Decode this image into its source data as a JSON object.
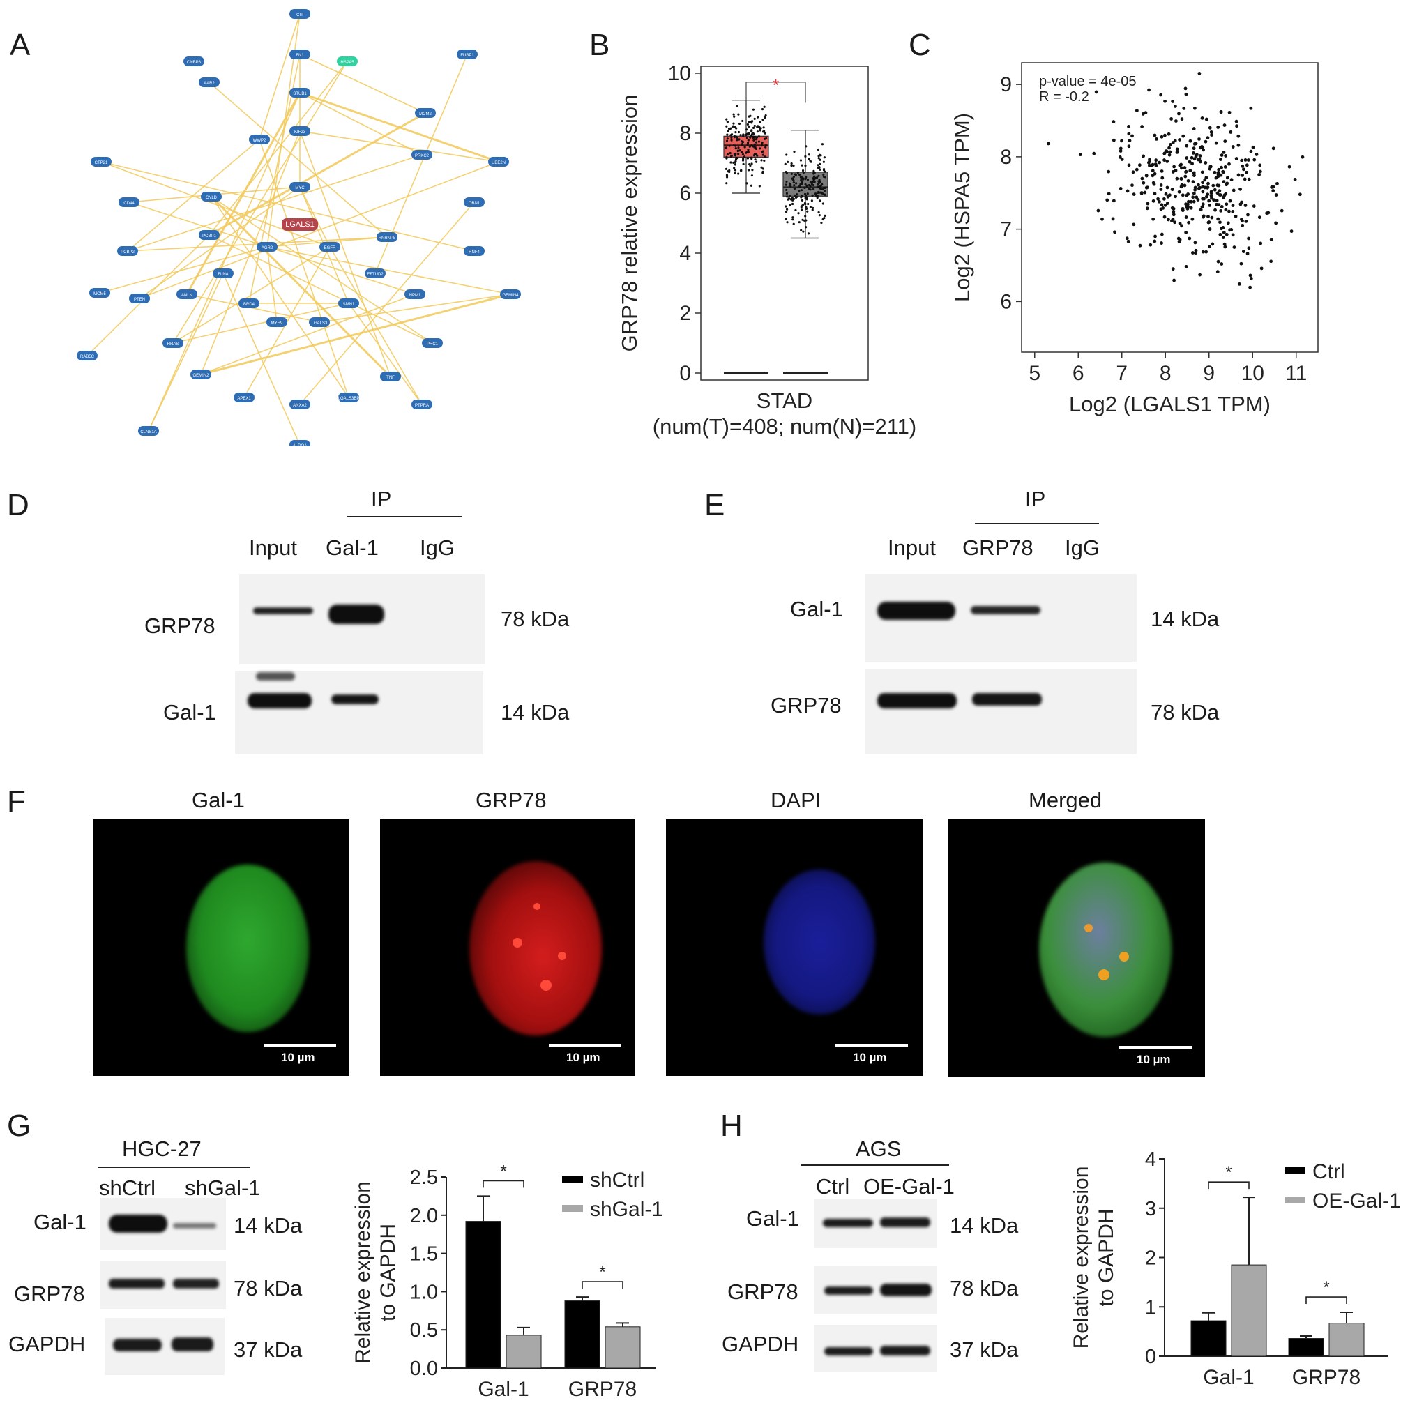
{
  "panel_letters": {
    "a": "A",
    "b": "B",
    "c": "C",
    "d": "D",
    "e": "E",
    "f": "F",
    "g": "G",
    "h": "H"
  },
  "network": {
    "center": "LGALS1",
    "highlight": "HSPA5",
    "nodes": [
      "CIT",
      "CNBP8",
      "FN1",
      "HSPA5",
      "FUBP1",
      "AAR2",
      "STUB1",
      "MCM2",
      "KIF23",
      "WWP2",
      "PRKC2",
      "UBE2N",
      "CTP21",
      "MYC",
      "OBN1",
      "CD44",
      "CYLD",
      "LGALS1",
      "PCBP2",
      "PCBP1",
      "AGR2",
      "EGFR",
      "HNRNP5",
      "RNF4",
      "FLNA",
      "EFTUD2",
      "MCM5",
      "PTEN",
      "ANLN",
      "BRD4",
      "SMN1",
      "NPM1",
      "GEMIN4",
      "MYH9",
      "LGALS3",
      "HRAS",
      "PRC1",
      "RAB5C",
      "GEMIN2",
      "APEX1",
      "ANXA2",
      "LGALS3BP",
      "TNF",
      "PTPRA",
      "CLNS1A",
      "ALDOA"
    ]
  },
  "chart_data": [
    {
      "type": "box",
      "title": "",
      "ylabel": "GRP78 relative expression",
      "xlabel": "STAD",
      "xlabel_sub": "(num(T)=408; num(N)=211)",
      "ylim": [
        0,
        10
      ],
      "yticks": [
        0,
        2,
        4,
        6,
        8,
        10
      ],
      "significance": "*",
      "series": [
        {
          "name": "T",
          "color": "#e8605b",
          "whisker_low": 6.0,
          "q1": 7.2,
          "median": 7.6,
          "q3": 7.9,
          "whisker_high": 9.1
        },
        {
          "name": "N",
          "color": "#7a7a7a",
          "whisker_low": 4.5,
          "q1": 5.9,
          "median": 6.2,
          "q3": 6.7,
          "whisker_high": 8.1
        }
      ]
    },
    {
      "type": "scatter",
      "xlabel": "Log2 (LGALS1 TPM)",
      "ylabel": "Log2 (HSPA5 TPM)",
      "xlim": [
        4.7,
        11.5
      ],
      "ylim": [
        5.3,
        9.3
      ],
      "xticks": [
        5,
        6,
        7,
        8,
        9,
        10,
        11
      ],
      "yticks": [
        6,
        7,
        8,
        9
      ],
      "annotations": [
        "p-value = 4e-05",
        "R = -0.2"
      ],
      "n_points": 408,
      "center": [
        8.7,
        7.6
      ],
      "spread": [
        0.95,
        0.55
      ],
      "r": -0.2
    },
    {
      "type": "bar",
      "ylabel": "Relative expression to GAPDH",
      "categories": [
        "Gal-1",
        "GRP78"
      ],
      "ylim": [
        0,
        2.5
      ],
      "yticks": [
        "0.0",
        "0.5",
        "1.0",
        "1.5",
        "2.0",
        "2.5"
      ],
      "series": [
        {
          "name": "shCtrl",
          "color": "#000000",
          "values": [
            1.92,
            0.88
          ],
          "errors": [
            0.33,
            0.05
          ]
        },
        {
          "name": "shGal-1",
          "color": "#a8a8a8",
          "values": [
            0.43,
            0.54
          ],
          "errors": [
            0.1,
            0.05
          ]
        }
      ],
      "significance": [
        "*",
        "*"
      ]
    },
    {
      "type": "bar",
      "ylabel": "Relative expression to GAPDH",
      "categories": [
        "Gal-1",
        "GRP78"
      ],
      "ylim": [
        0,
        4
      ],
      "yticks": [
        "0",
        "1",
        "2",
        "3",
        "4"
      ],
      "series": [
        {
          "name": "Ctrl",
          "color": "#000000",
          "values": [
            0.72,
            0.36
          ],
          "errors": [
            0.16,
            0.05
          ]
        },
        {
          "name": "OE-Gal-1",
          "color": "#a8a8a8",
          "values": [
            1.85,
            0.67
          ],
          "errors": [
            1.37,
            0.22
          ]
        }
      ],
      "significance": [
        "*",
        "*"
      ]
    }
  ],
  "panel_d": {
    "ip": "IP",
    "lanes": [
      "Input",
      "Gal-1",
      "IgG"
    ],
    "rows": [
      "GRP78",
      "Gal-1"
    ],
    "sizes": [
      "78 kDa",
      "14 kDa"
    ]
  },
  "panel_e": {
    "ip": "IP",
    "lanes": [
      "Input",
      "GRP78",
      "IgG"
    ],
    "rows": [
      "Gal-1",
      "GRP78"
    ],
    "sizes": [
      "14 kDa",
      "78 kDa"
    ]
  },
  "panel_f": {
    "titles": [
      "Gal-1",
      "GRP78",
      "DAPI",
      "Merged"
    ],
    "scale": "10 µm"
  },
  "panel_g": {
    "cell_line": "HGC-27",
    "lanes": [
      "shCtrl",
      "shGal-1"
    ],
    "rows": [
      "Gal-1",
      "GRP78",
      "GAPDH"
    ],
    "sizes": [
      "14 kDa",
      "78 kDa",
      "37 kDa"
    ]
  },
  "panel_h": {
    "cell_line": "AGS",
    "lanes": [
      "Ctrl",
      "OE-Gal-1"
    ],
    "rows": [
      "Gal-1",
      "GRP78",
      "GAPDH"
    ],
    "sizes": [
      "14 kDa",
      "78 kDa",
      "37 kDa"
    ]
  }
}
